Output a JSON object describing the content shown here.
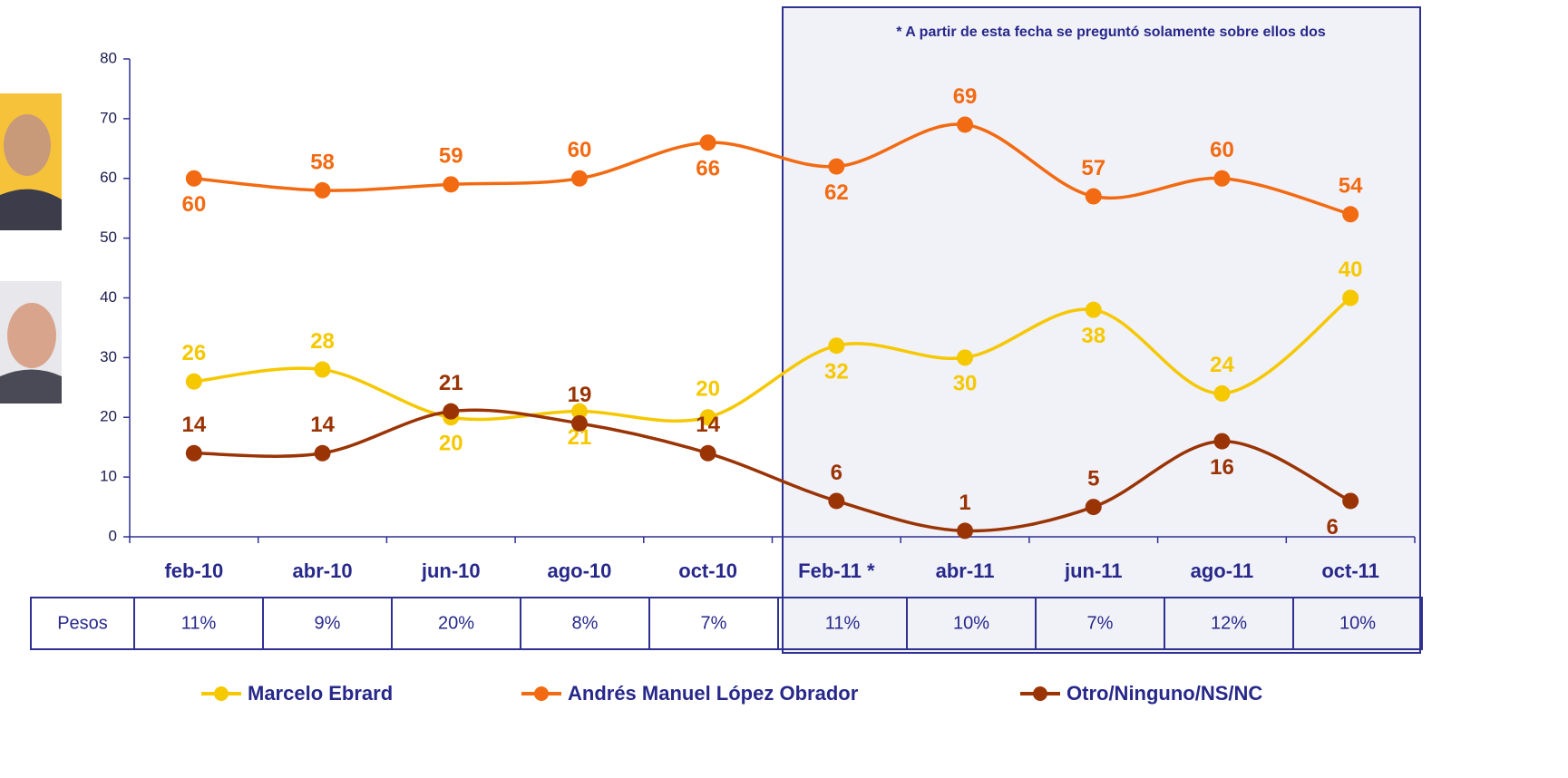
{
  "chart_data": {
    "type": "line",
    "annotation": "* A partir de esta fecha se preguntó solamente sobre  ellos dos",
    "categories": [
      "feb-10",
      "abr-10",
      "jun-10",
      "ago-10",
      "oct-10",
      "Feb-11 *",
      "abr-11",
      "jun-11",
      "ago-11",
      "oct-11"
    ],
    "series": [
      {
        "name": "Marcelo Ebrard",
        "color": "#f5c800",
        "values": [
          26,
          28,
          20,
          21,
          20,
          32,
          30,
          38,
          24,
          40
        ]
      },
      {
        "name": "Andrés Manuel López Obrador",
        "color": "#f26b12",
        "values": [
          60,
          58,
          59,
          60,
          66,
          62,
          69,
          57,
          60,
          54
        ]
      },
      {
        "name": "Otro/Ninguno/NS/NC",
        "color": "#9a3405",
        "values": [
          14,
          14,
          21,
          19,
          14,
          6,
          1,
          5,
          16,
          6
        ]
      }
    ],
    "ylim": [
      0,
      80
    ],
    "yticks": [
      0,
      10,
      20,
      30,
      40,
      50,
      60,
      70,
      80
    ],
    "table": {
      "label": "Pesos",
      "values": [
        "11%",
        "9%",
        "20%",
        "8%",
        "7%",
        "11%",
        "10%",
        "7%",
        "12%",
        "10%"
      ]
    }
  }
}
